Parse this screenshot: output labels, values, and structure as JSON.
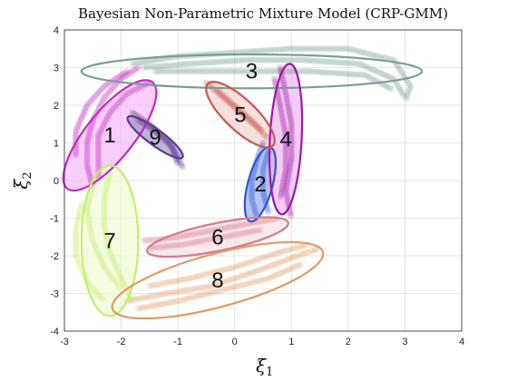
{
  "chart_data": {
    "type": "scatter",
    "title": "Bayesian Non-Parametric Mixture Model (CRP-GMM)",
    "xlabel": "ξ",
    "xlabel_sub": "1",
    "ylabel": "ξ",
    "ylabel_sub": "2",
    "xlim": [
      -3,
      4
    ],
    "ylim": [
      -4,
      4
    ],
    "xticks": [
      -3,
      -2,
      -1,
      0,
      1,
      2,
      3,
      4
    ],
    "yticks": [
      -4,
      -3,
      -2,
      -1,
      0,
      1,
      2,
      3,
      4
    ],
    "grid": true,
    "clusters": [
      {
        "label": "1",
        "color": "#c02ac0",
        "fill": "#f7b3f7",
        "center": [
          -2.2,
          1.2
        ],
        "radii": [
          1.6,
          0.45
        ],
        "angle_deg": 62,
        "trajectories": [
          [
            [
              -1.7,
              3.0
            ],
            [
              -2.0,
              2.7
            ],
            [
              -2.3,
              2.2
            ],
            [
              -2.5,
              1.6
            ],
            [
              -2.6,
              1.0
            ],
            [
              -2.6,
              0.4
            ],
            [
              -2.5,
              -0.2
            ]
          ],
          [
            [
              -1.5,
              2.6
            ],
            [
              -1.9,
              2.3
            ],
            [
              -2.2,
              1.8
            ],
            [
              -2.4,
              1.2
            ],
            [
              -2.4,
              0.6
            ],
            [
              -2.4,
              0.0
            ]
          ],
          [
            [
              -1.9,
              2.9
            ],
            [
              -2.3,
              2.5
            ],
            [
              -2.6,
              2.0
            ],
            [
              -2.8,
              1.3
            ],
            [
              -2.8,
              0.6
            ]
          ]
        ]
      },
      {
        "label": "2",
        "color": "#2f55d4",
        "fill": "#8fa6ee",
        "center": [
          0.45,
          -0.1
        ],
        "radii": [
          1.0,
          0.22
        ],
        "angle_deg": 80,
        "trajectories": [
          [
            [
              0.5,
              1.0
            ],
            [
              0.4,
              0.6
            ],
            [
              0.3,
              0.0
            ],
            [
              0.3,
              -0.5
            ],
            [
              0.4,
              -1.0
            ]
          ],
          [
            [
              0.6,
              0.8
            ],
            [
              0.5,
              0.3
            ],
            [
              0.5,
              -0.3
            ],
            [
              0.6,
              -0.9
            ]
          ]
        ]
      },
      {
        "label": "3",
        "color": "#7a9e97",
        "fill": "none",
        "center": [
          0.3,
          2.9
        ],
        "radii": [
          3.0,
          0.45
        ],
        "angle_deg": 0,
        "trajectories": [
          [
            [
              -1.8,
              3.1
            ],
            [
              -1.0,
              3.3
            ],
            [
              0.0,
              3.4
            ],
            [
              1.0,
              3.5
            ],
            [
              2.0,
              3.5
            ],
            [
              2.8,
              3.2
            ],
            [
              3.1,
              2.5
            ],
            [
              3.0,
              2.1
            ]
          ],
          [
            [
              -1.6,
              3.0
            ],
            [
              -0.8,
              3.1
            ],
            [
              0.2,
              3.2
            ],
            [
              1.2,
              3.2
            ],
            [
              2.2,
              3.1
            ],
            [
              2.8,
              2.7
            ],
            [
              3.0,
              2.2
            ]
          ],
          [
            [
              -1.4,
              2.9
            ],
            [
              -0.6,
              2.9
            ],
            [
              0.3,
              2.9
            ],
            [
              1.3,
              2.9
            ],
            [
              2.3,
              2.8
            ],
            [
              2.8,
              2.4
            ]
          ]
        ]
      },
      {
        "label": "4",
        "color": "#9a1aa0",
        "fill": "#f0b0f5",
        "center": [
          0.9,
          1.1
        ],
        "radii": [
          2.0,
          0.28
        ],
        "angle_deg": 88,
        "trajectories": [
          [
            [
              0.8,
              3.0
            ],
            [
              0.9,
              2.3
            ],
            [
              1.0,
              1.5
            ],
            [
              1.0,
              0.6
            ],
            [
              0.9,
              -0.3
            ],
            [
              1.0,
              -1.0
            ]
          ],
          [
            [
              0.7,
              2.7
            ],
            [
              0.8,
              2.0
            ],
            [
              0.9,
              1.2
            ],
            [
              0.9,
              0.3
            ],
            [
              0.8,
              -0.5
            ]
          ]
        ]
      },
      {
        "label": "5",
        "color": "#c8584f",
        "fill": "#f5d0cc",
        "center": [
          0.1,
          1.75
        ],
        "radii": [
          1.0,
          0.3
        ],
        "angle_deg": -55,
        "trajectories": [
          [
            [
              -0.5,
              2.6
            ],
            [
              -0.2,
              2.2
            ],
            [
              0.1,
              1.8
            ],
            [
              0.4,
              1.4
            ],
            [
              0.6,
              1.1
            ]
          ],
          [
            [
              -0.3,
              2.4
            ],
            [
              0.0,
              2.0
            ],
            [
              0.3,
              1.6
            ],
            [
              0.5,
              1.3
            ]
          ]
        ]
      },
      {
        "label": "6",
        "color": "#d87a8a",
        "fill": "#f6dde2",
        "center": [
          -0.3,
          -1.5
        ],
        "radii": [
          1.3,
          0.35
        ],
        "angle_deg": 17,
        "trajectories": [
          [
            [
              -1.6,
              -1.6
            ],
            [
              -1.0,
              -1.5
            ],
            [
              -0.3,
              -1.3
            ],
            [
              0.4,
              -1.1
            ],
            [
              0.8,
              -1.0
            ]
          ],
          [
            [
              -1.5,
              -1.8
            ],
            [
              -0.9,
              -1.7
            ],
            [
              -0.2,
              -1.5
            ],
            [
              0.5,
              -1.3
            ]
          ]
        ]
      },
      {
        "label": "7",
        "color": "#c5ef6a",
        "fill": "#eefad0",
        "center": [
          -2.2,
          -1.6
        ],
        "radii": [
          2.0,
          0.5
        ],
        "angle_deg": 90,
        "trajectories": [
          [
            [
              -2.2,
              0.2
            ],
            [
              -2.3,
              -0.5
            ],
            [
              -2.3,
              -1.2
            ],
            [
              -2.2,
              -1.9
            ],
            [
              -2.0,
              -2.6
            ],
            [
              -1.8,
              -3.2
            ]
          ],
          [
            [
              -2.7,
              -0.6
            ],
            [
              -2.8,
              -1.3
            ],
            [
              -2.8,
              -2.0
            ],
            [
              -2.6,
              -2.7
            ],
            [
              -2.3,
              -3.2
            ]
          ],
          [
            [
              -2.5,
              0.0
            ],
            [
              -2.6,
              -0.8
            ],
            [
              -2.5,
              -1.6
            ],
            [
              -2.3,
              -2.3
            ],
            [
              -2.0,
              -2.9
            ]
          ]
        ]
      },
      {
        "label": "8",
        "color": "#e29a63",
        "fill": "none",
        "center": [
          -0.3,
          -2.65
        ],
        "radii": [
          2.0,
          0.65
        ],
        "angle_deg": 22,
        "trajectories": [
          [
            [
              -1.9,
              -3.2
            ],
            [
              -1.2,
              -3.0
            ],
            [
              -0.4,
              -2.8
            ],
            [
              0.4,
              -2.4
            ],
            [
              1.1,
              -2.0
            ],
            [
              1.5,
              -1.8
            ]
          ],
          [
            [
              -1.7,
              -3.4
            ],
            [
              -1.0,
              -3.2
            ],
            [
              -0.2,
              -2.9
            ],
            [
              0.6,
              -2.6
            ],
            [
              1.2,
              -2.2
            ]
          ],
          [
            [
              -1.5,
              -2.8
            ],
            [
              -0.8,
              -2.6
            ],
            [
              0.0,
              -2.3
            ],
            [
              0.8,
              -1.9
            ],
            [
              1.3,
              -1.7
            ]
          ]
        ]
      },
      {
        "label": "9",
        "color": "#5a3d8a",
        "fill": "#9b8bc4",
        "center": [
          -1.4,
          1.15
        ],
        "radii": [
          0.72,
          0.16
        ],
        "angle_deg": -48,
        "trajectories": [
          [
            [
              -1.8,
              1.8
            ],
            [
              -1.5,
              1.5
            ],
            [
              -1.2,
              1.1
            ],
            [
              -1.0,
              0.6
            ],
            [
              -0.9,
              0.3
            ]
          ],
          [
            [
              -1.7,
              1.6
            ],
            [
              -1.4,
              1.3
            ],
            [
              -1.1,
              0.9
            ],
            [
              -1.0,
              0.4
            ]
          ]
        ]
      }
    ]
  }
}
